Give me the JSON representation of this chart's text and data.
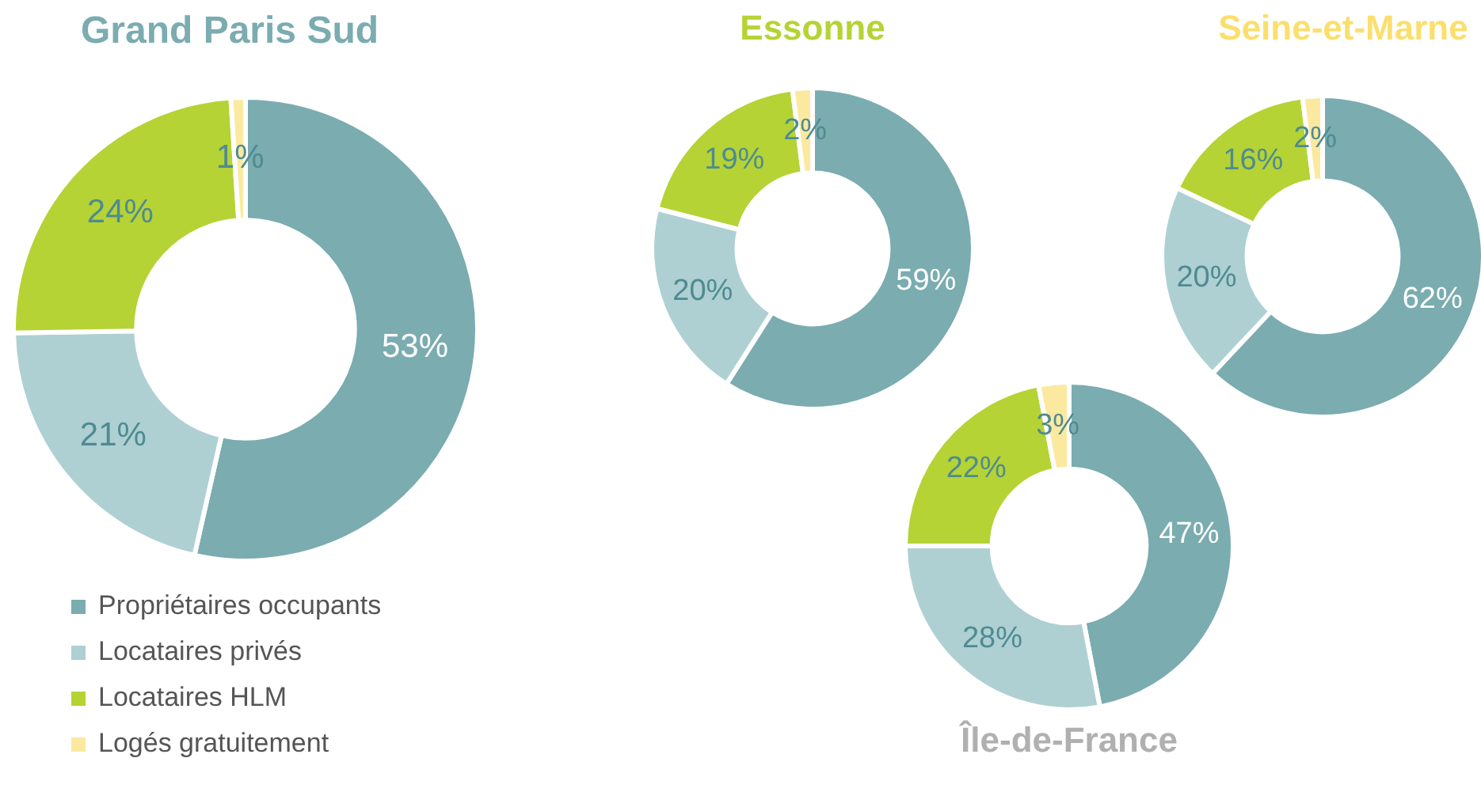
{
  "chart_data": [
    {
      "type": "donut",
      "title": "Grand Paris Sud",
      "categories": [
        "Propriétaires occupants",
        "Locataires privés",
        "Locataires HLM",
        "Logés gratuitement"
      ],
      "values": [
        53,
        21,
        24,
        1
      ],
      "colors": [
        "#7aacb0",
        "#aed0d3",
        "#b5d334",
        "#fbe9a0"
      ],
      "value_labels": [
        "53%",
        "21%",
        "24%",
        "1%"
      ],
      "legend": "bottom left"
    },
    {
      "type": "donut",
      "title": "Essonne",
      "values": [
        59,
        20,
        19,
        2
      ],
      "colors": [
        "#7aacb0",
        "#aed0d3",
        "#b5d334",
        "#fbe9a0"
      ],
      "value_labels": [
        "59%",
        "20%",
        "19%",
        "2%"
      ]
    },
    {
      "type": "donut",
      "title": "Seine-et-Marne",
      "values": [
        62,
        20,
        16,
        2
      ],
      "colors": [
        "#7aacb0",
        "#aed0d3",
        "#b5d334",
        "#fbe9a0"
      ],
      "value_labels": [
        "62%",
        "20%",
        "16%",
        "2%"
      ]
    },
    {
      "type": "donut",
      "title": "Île-de-France",
      "values": [
        47,
        28,
        22,
        3
      ],
      "colors": [
        "#7aacb0",
        "#aed0d3",
        "#b5d334",
        "#fbe9a0"
      ],
      "value_labels": [
        "47%",
        "28%",
        "22%",
        "3%"
      ]
    }
  ]
}
